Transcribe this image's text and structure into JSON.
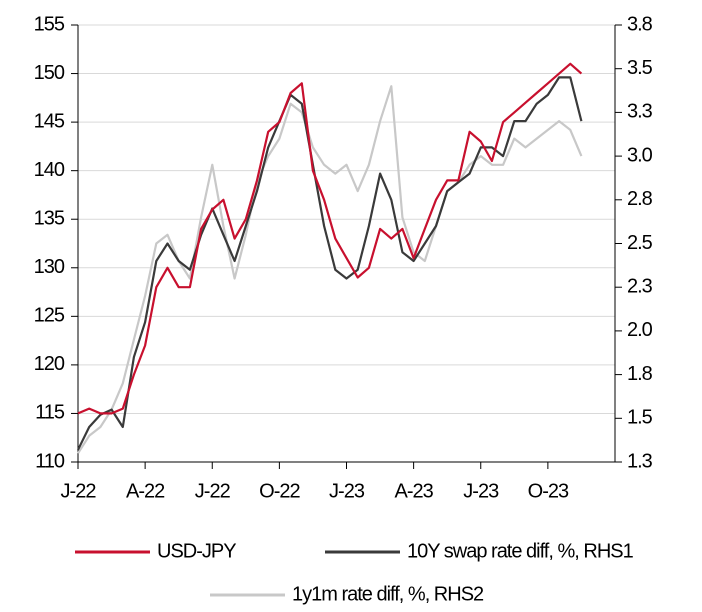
{
  "chart_data": {
    "type": "line",
    "x": [
      0,
      0.5,
      1,
      1.5,
      2,
      2.5,
      3,
      3.5,
      4,
      4.5,
      5,
      5.5,
      6,
      6.5,
      7,
      7.5,
      8,
      8.5,
      9,
      9.5,
      10,
      10.5,
      11,
      11.5,
      12,
      12.5,
      13,
      13.5,
      14,
      14.5,
      15,
      15.5,
      16,
      16.5,
      17,
      17.5,
      18,
      18.5,
      19,
      19.5,
      20,
      20.5,
      21,
      21.5,
      22,
      22.5
    ],
    "series": [
      {
        "name": "USD-JPY",
        "color": "#c8102e",
        "values": [
          115,
          115.5,
          115,
          115,
          115.5,
          119,
          122,
          128,
          130,
          128,
          128,
          134,
          136,
          137,
          133,
          135,
          139,
          144,
          145,
          148,
          149,
          140,
          137,
          133,
          131,
          129,
          130,
          134,
          133,
          134,
          131,
          134,
          137,
          139,
          139,
          144,
          143,
          141,
          145,
          146,
          147,
          148,
          149,
          150,
          151,
          150
        ]
      },
      {
        "name": "10Y swap rate diff, %, RHS1",
        "color": "#3a3a3a",
        "axis": "y2",
        "values": [
          1.32,
          1.45,
          1.52,
          1.55,
          1.45,
          1.85,
          2.05,
          2.4,
          2.5,
          2.4,
          2.35,
          2.55,
          2.7,
          2.55,
          2.4,
          2.6,
          2.8,
          3.05,
          3.2,
          3.35,
          3.3,
          2.95,
          2.6,
          2.35,
          2.3,
          2.35,
          2.6,
          2.9,
          2.75,
          2.45,
          2.4,
          2.5,
          2.6,
          2.8,
          2.85,
          2.9,
          3.05,
          3.05,
          3.0,
          3.2,
          3.2,
          3.3,
          3.35,
          3.45,
          3.45,
          3.2
        ]
      },
      {
        "name": "1y1m rate diff, %, RHS2",
        "color": "#c8c8c8",
        "axis": "y2",
        "values": [
          1.3,
          1.4,
          1.45,
          1.55,
          1.7,
          1.95,
          2.2,
          2.5,
          2.55,
          2.4,
          2.3,
          2.65,
          2.95,
          2.6,
          2.3,
          2.55,
          2.85,
          3.0,
          3.1,
          3.3,
          3.25,
          3.05,
          2.95,
          2.9,
          2.95,
          2.8,
          2.95,
          3.2,
          3.4,
          2.65,
          2.45,
          2.4,
          2.6,
          2.8,
          2.85,
          2.95,
          3.0,
          2.95,
          2.95,
          3.1,
          3.05,
          3.1,
          3.15,
          3.2,
          3.15,
          3.0
        ]
      }
    ],
    "xlim": [
      0,
      24
    ],
    "xticks": [
      {
        "value": 0,
        "label": "J-22"
      },
      {
        "value": 3,
        "label": "A-22"
      },
      {
        "value": 6,
        "label": "J-22"
      },
      {
        "value": 9,
        "label": "O-22"
      },
      {
        "value": 12,
        "label": "J-23"
      },
      {
        "value": 15,
        "label": "A-23"
      },
      {
        "value": 18,
        "label": "J-23"
      },
      {
        "value": 21,
        "label": "O-23"
      }
    ],
    "ylim": [
      110,
      155
    ],
    "yticks": [
      110,
      115,
      120,
      125,
      130,
      135,
      140,
      145,
      150,
      155
    ],
    "y2lim": [
      1.25,
      3.75
    ],
    "y2ticks": [
      {
        "value": 1.25,
        "label": "1.3"
      },
      1.5,
      {
        "value": 1.75,
        "label": "1.8"
      },
      {
        "value": 2,
        "label": "2.0"
      },
      {
        "value": 2.25,
        "label": "2.3"
      },
      2.5,
      {
        "value": 2.75,
        "label": "2.8"
      },
      {
        "value": 3,
        "label": "3.0"
      },
      {
        "value": 3.25,
        "label": "3.3"
      },
      3.5,
      {
        "value": 3.75,
        "label": "3.8"
      }
    ],
    "grid": true
  }
}
